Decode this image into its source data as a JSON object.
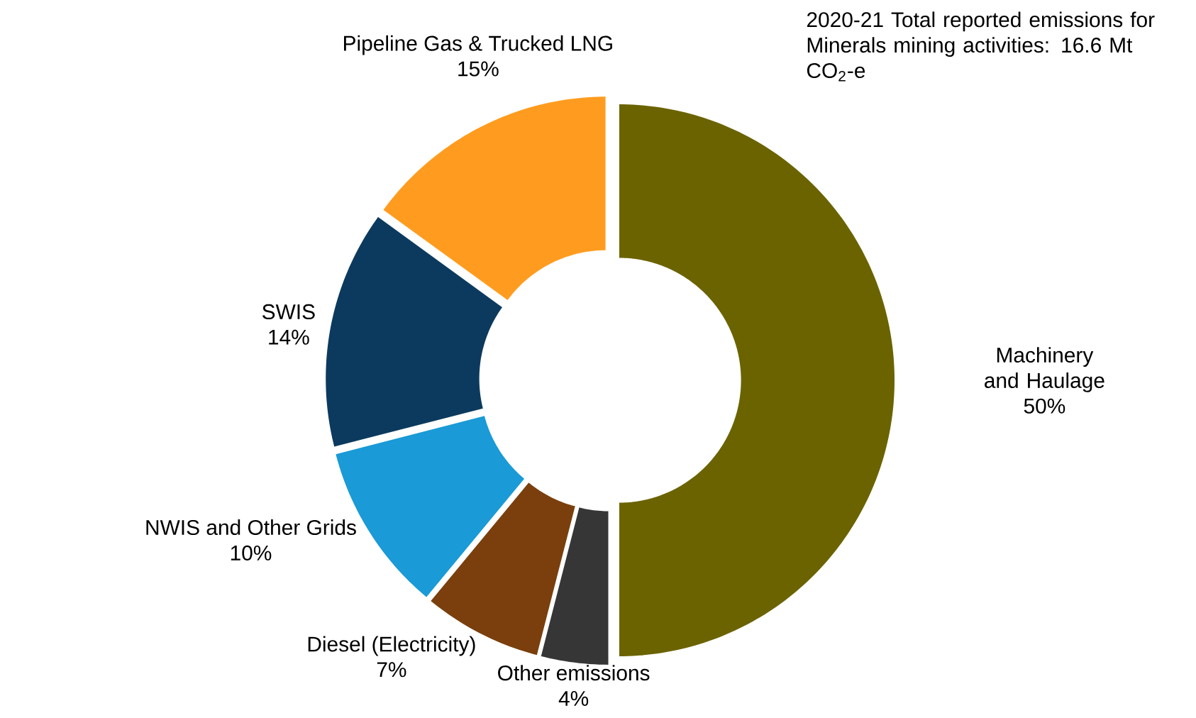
{
  "chart_data": {
    "type": "donut",
    "title": "2020-21 Total reported emissions for Minerals mining activities: 16.6 Mt CO$_{2}$-e",
    "categories": [
      "Machinery and Haulage",
      "Other emissions",
      "Diesel (Electricity)",
      "NWIS and Other Grids",
      "SWIS",
      "Pipeline Gas & Trucked LNG"
    ],
    "values": [
      50,
      4,
      7,
      10,
      14,
      15
    ],
    "value_labels": [
      "50%",
      "4%",
      "7%",
      "10%",
      "14%",
      "15%"
    ],
    "colors": [
      "#6b6300",
      "#363636",
      "#7a3f0c",
      "#1a9ad6",
      "#0c3a5e",
      "#ff9c1f"
    ]
  }
}
